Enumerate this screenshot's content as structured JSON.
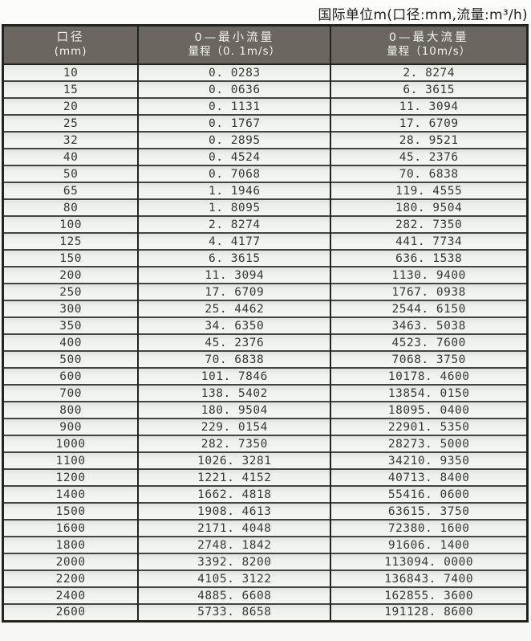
{
  "page": {
    "title": "国际单位m(口径:mm,流量:m³/h)"
  },
  "colors": {
    "header_bg": "#6b665f",
    "header_text": "#f3f3f0",
    "border_dark": "#23231f",
    "row_sep": "#45453f",
    "body_text": "#373733",
    "row_top": "#dfe2dc",
    "row_bottom": "#f4f6f2",
    "page_bg": "#f7f7f5"
  },
  "table": {
    "headers": [
      {
        "line1": "口径",
        "line2": "(mm)"
      },
      {
        "line1": "0—最小流量",
        "line2": "量程（0. 1m/s）"
      },
      {
        "line1": "0—最大流量",
        "line2": "量程（10m/s）"
      }
    ],
    "rows": [
      [
        "10",
        "0. 0283",
        "2. 8274"
      ],
      [
        "15",
        "0. 0636",
        "6. 3615"
      ],
      [
        "20",
        "0. 1131",
        "11. 3094"
      ],
      [
        "25",
        "0. 1767",
        "17. 6709"
      ],
      [
        "32",
        "0. 2895",
        "28. 9521"
      ],
      [
        "40",
        "0. 4524",
        "45. 2376"
      ],
      [
        "50",
        "0. 7068",
        "70. 6838"
      ],
      [
        "65",
        "1. 1946",
        "119. 4555"
      ],
      [
        "80",
        "1. 8095",
        "180. 9504"
      ],
      [
        "100",
        "2. 8274",
        "282. 7350"
      ],
      [
        "125",
        "4. 4177",
        "441. 7734"
      ],
      [
        "150",
        "6. 3615",
        "636. 1538"
      ],
      [
        "200",
        "11. 3094",
        "1130. 9400"
      ],
      [
        "250",
        "17. 6709",
        "1767. 0938"
      ],
      [
        "300",
        "25. 4462",
        "2544. 6150"
      ],
      [
        "350",
        "34. 6350",
        "3463. 5038"
      ],
      [
        "400",
        "45. 2376",
        "4523. 7600"
      ],
      [
        "500",
        "70. 6838",
        "7068. 3750"
      ],
      [
        "600",
        "101. 7846",
        "10178. 4600"
      ],
      [
        "700",
        "138. 5402",
        "13854. 0150"
      ],
      [
        "800",
        "180. 9504",
        "18095. 0400"
      ],
      [
        "900",
        "229. 0154",
        "22901. 5350"
      ],
      [
        "1000",
        "282. 7350",
        "28273. 5000"
      ],
      [
        "1100",
        "1026. 3281",
        "34210. 9350"
      ],
      [
        "1200",
        "1221. 4152",
        "40713. 8400"
      ],
      [
        "1400",
        "1662. 4818",
        "55416. 0600"
      ],
      [
        "1500",
        "1908. 4613",
        "63615. 3750"
      ],
      [
        "1600",
        "2171. 4048",
        "72380. 1600"
      ],
      [
        "1800",
        "2748. 1842",
        "91606. 1400"
      ],
      [
        "2000",
        "3392. 8200",
        "113094. 0000"
      ],
      [
        "2200",
        "4105. 3122",
        "136843. 7400"
      ],
      [
        "2400",
        "4885. 6608",
        "162855. 3600"
      ],
      [
        "2600",
        "5733. 8658",
        "191128. 8600"
      ]
    ]
  },
  "chart_data": {
    "type": "table",
    "title": "国际单位m(口径:mm,流量:m³/h)",
    "columns": [
      "口径(mm)",
      "0—最小流量 量程（0.1m/s）",
      "0—最大流量 量程（10m/s）"
    ],
    "rows": [
      [
        10,
        0.0283,
        2.8274
      ],
      [
        15,
        0.0636,
        6.3615
      ],
      [
        20,
        0.1131,
        11.3094
      ],
      [
        25,
        0.1767,
        17.6709
      ],
      [
        32,
        0.2895,
        28.9521
      ],
      [
        40,
        0.4524,
        45.2376
      ],
      [
        50,
        0.7068,
        70.6838
      ],
      [
        65,
        1.1946,
        119.4555
      ],
      [
        80,
        1.8095,
        180.9504
      ],
      [
        100,
        2.8274,
        282.735
      ],
      [
        125,
        4.4177,
        441.7734
      ],
      [
        150,
        6.3615,
        636.1538
      ],
      [
        200,
        11.3094,
        1130.94
      ],
      [
        250,
        17.6709,
        1767.0938
      ],
      [
        300,
        25.4462,
        2544.615
      ],
      [
        350,
        34.635,
        3463.5038
      ],
      [
        400,
        45.2376,
        4523.76
      ],
      [
        500,
        70.6838,
        7068.375
      ],
      [
        600,
        101.7846,
        10178.46
      ],
      [
        700,
        138.5402,
        13854.015
      ],
      [
        800,
        180.9504,
        18095.04
      ],
      [
        900,
        229.0154,
        22901.535
      ],
      [
        1000,
        282.735,
        28273.5
      ],
      [
        1100,
        1026.3281,
        34210.935
      ],
      [
        1200,
        1221.4152,
        40713.84
      ],
      [
        1400,
        1662.4818,
        55416.06
      ],
      [
        1500,
        1908.4613,
        63615.375
      ],
      [
        1600,
        2171.4048,
        72380.16
      ],
      [
        1800,
        2748.1842,
        91606.14
      ],
      [
        2000,
        3392.82,
        113094.0
      ],
      [
        2200,
        4105.3122,
        136843.74
      ],
      [
        2400,
        4885.6608,
        162855.36
      ],
      [
        2600,
        5733.8658,
        191128.86
      ]
    ]
  }
}
